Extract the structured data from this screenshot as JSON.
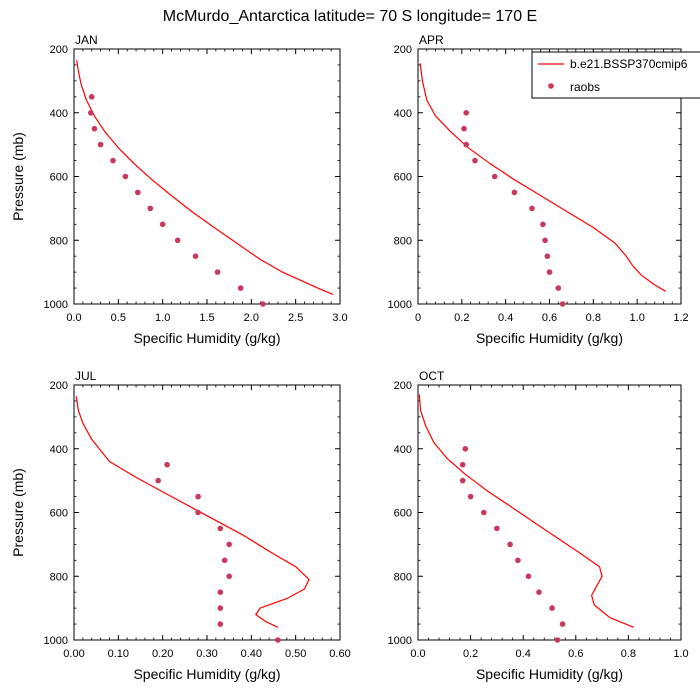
{
  "figure": {
    "title": "McMurdo_Antarctica  latitude= 70 S longitude= 170 E"
  },
  "legend": {
    "placement": "top-right",
    "model_label": "b.e21.BSSP370cmip6",
    "obs_label": "raobs"
  },
  "colors": {
    "model": "#ff0000",
    "obs": "#c8385a",
    "axis": "#000000"
  },
  "chart_data": [
    {
      "type": "line",
      "panel_label": "JAN",
      "xlabel": "Specific Humidity (g/kg)",
      "ylabel": "Pressure (mb)",
      "xlim": [
        0,
        3
      ],
      "ylim": [
        1000,
        200
      ],
      "y_inverted": true,
      "xticks": [
        "0.0",
        "0.5",
        "1.0",
        "1.5",
        "2.0",
        "2.5",
        "3.0"
      ],
      "xtick_values": [
        0,
        0.5,
        1,
        1.5,
        2,
        2.5,
        3
      ],
      "yticks": [
        "200",
        "400",
        "600",
        "800",
        "1000"
      ],
      "ytick_values": [
        200,
        400,
        600,
        800,
        1000
      ],
      "series": [
        {
          "name": "b.e21.BSSP370cmip6",
          "kind": "line",
          "x": [
            0.03,
            0.05,
            0.08,
            0.14,
            0.23,
            0.35,
            0.5,
            0.68,
            0.88,
            1.1,
            1.33,
            1.58,
            1.84,
            2.1,
            2.35,
            2.55,
            2.75,
            2.92
          ],
          "y": [
            235,
            270,
            310,
            360,
            410,
            460,
            510,
            560,
            610,
            660,
            710,
            760,
            810,
            860,
            900,
            925,
            950,
            970
          ]
        },
        {
          "name": "raobs",
          "kind": "scatter",
          "x": [
            0.2,
            0.19,
            0.23,
            0.3,
            0.44,
            0.58,
            0.72,
            0.86,
            1.0,
            1.17,
            1.37,
            1.62,
            1.88,
            2.13
          ],
          "y": [
            350,
            400,
            450,
            500,
            550,
            600,
            650,
            700,
            750,
            800,
            850,
            900,
            950,
            1000
          ]
        }
      ]
    },
    {
      "type": "line",
      "panel_label": "APR",
      "xlabel": "Specific Humidity (g/kg)",
      "ylabel": "",
      "xlim": [
        0,
        1.2
      ],
      "ylim": [
        1000,
        200
      ],
      "y_inverted": true,
      "xticks": [
        "0",
        "0.2",
        "0.4",
        "0.6",
        "0.8",
        "1.0",
        "1.2"
      ],
      "xtick_values": [
        0,
        0.2,
        0.4,
        0.6,
        0.8,
        1.0,
        1.2
      ],
      "yticks": [
        "200",
        "400",
        "600",
        "800",
        "1000"
      ],
      "ytick_values": [
        200,
        400,
        600,
        800,
        1000
      ],
      "series": [
        {
          "name": "b.e21.BSSP370cmip6",
          "kind": "line",
          "x": [
            0.01,
            0.02,
            0.04,
            0.08,
            0.15,
            0.23,
            0.33,
            0.44,
            0.56,
            0.68,
            0.8,
            0.9,
            0.95,
            0.98,
            1.02,
            1.08,
            1.13
          ],
          "y": [
            245,
            300,
            360,
            410,
            460,
            510,
            560,
            610,
            660,
            710,
            760,
            810,
            850,
            880,
            910,
            940,
            960
          ]
        },
        {
          "name": "raobs",
          "kind": "scatter",
          "x": [
            0.22,
            0.21,
            0.22,
            0.26,
            0.35,
            0.44,
            0.52,
            0.57,
            0.58,
            0.59,
            0.6,
            0.64,
            0.66
          ],
          "y": [
            400,
            450,
            500,
            550,
            600,
            650,
            700,
            750,
            800,
            850,
            900,
            950,
            1000
          ]
        }
      ]
    },
    {
      "type": "line",
      "panel_label": "JUL",
      "xlabel": "Specific Humidity (g/kg)",
      "ylabel": "Pressure (mb)",
      "xlim": [
        0,
        0.6
      ],
      "ylim": [
        1000,
        200
      ],
      "y_inverted": true,
      "xticks": [
        "0.00",
        "0.10",
        "0.20",
        "0.30",
        "0.40",
        "0.50",
        "0.60"
      ],
      "xtick_values": [
        0,
        0.1,
        0.2,
        0.3,
        0.4,
        0.5,
        0.6
      ],
      "yticks": [
        "200",
        "400",
        "600",
        "800",
        "1000"
      ],
      "ytick_values": [
        200,
        400,
        600,
        800,
        1000
      ],
      "series": [
        {
          "name": "b.e21.BSSP370cmip6",
          "kind": "line",
          "x": [
            0.005,
            0.01,
            0.02,
            0.04,
            0.08,
            0.14,
            0.22,
            0.3,
            0.38,
            0.45,
            0.5,
            0.53,
            0.52,
            0.48,
            0.42,
            0.41,
            0.43,
            0.46
          ],
          "y": [
            235,
            280,
            320,
            370,
            440,
            490,
            550,
            610,
            670,
            730,
            770,
            810,
            840,
            870,
            900,
            920,
            940,
            960
          ]
        },
        {
          "name": "raobs",
          "kind": "scatter",
          "x": [
            0.21,
            0.19,
            0.28,
            0.28,
            0.33,
            0.35,
            0.34,
            0.35,
            0.33,
            0.33,
            0.33,
            0.46
          ],
          "y": [
            450,
            500,
            550,
            600,
            650,
            700,
            750,
            800,
            850,
            900,
            950,
            1000
          ]
        }
      ]
    },
    {
      "type": "line",
      "panel_label": "OCT",
      "xlabel": "Specific Humidity (g/kg)",
      "ylabel": "",
      "xlim": [
        0,
        1.0
      ],
      "ylim": [
        1000,
        200
      ],
      "y_inverted": true,
      "xticks": [
        "0.0",
        "0.2",
        "0.4",
        "0.6",
        "0.8",
        "1.0"
      ],
      "xtick_values": [
        0,
        0.2,
        0.4,
        0.6,
        0.8,
        1.0
      ],
      "yticks": [
        "200",
        "400",
        "600",
        "800",
        "1000"
      ],
      "ytick_values": [
        200,
        400,
        600,
        800,
        1000
      ],
      "series": [
        {
          "name": "b.e21.BSSP370cmip6",
          "kind": "line",
          "x": [
            0.005,
            0.01,
            0.03,
            0.06,
            0.11,
            0.18,
            0.26,
            0.35,
            0.44,
            0.53,
            0.62,
            0.69,
            0.7,
            0.68,
            0.66,
            0.67,
            0.73,
            0.82
          ],
          "y": [
            230,
            280,
            330,
            380,
            430,
            480,
            530,
            580,
            630,
            680,
            730,
            770,
            800,
            830,
            860,
            890,
            930,
            960
          ]
        },
        {
          "name": "raobs",
          "kind": "scatter",
          "x": [
            0.18,
            0.17,
            0.17,
            0.2,
            0.25,
            0.3,
            0.35,
            0.38,
            0.42,
            0.46,
            0.51,
            0.55,
            0.53
          ],
          "y": [
            400,
            450,
            500,
            550,
            600,
            650,
            700,
            750,
            800,
            850,
            900,
            950,
            1000
          ]
        }
      ]
    }
  ]
}
